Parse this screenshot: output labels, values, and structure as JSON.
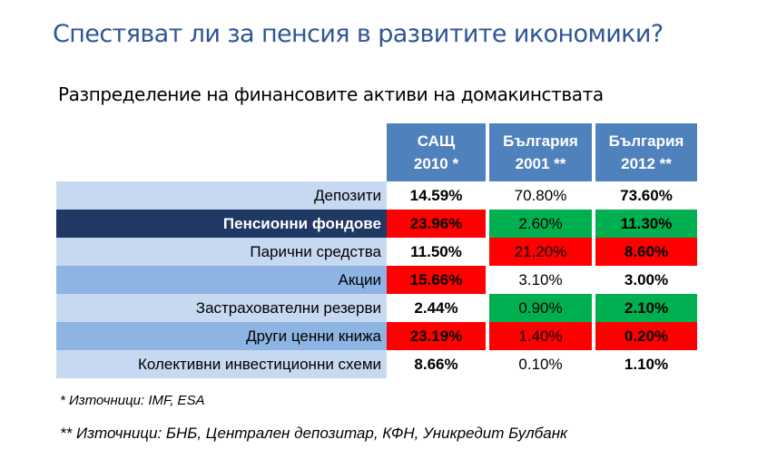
{
  "title": "Спестяват ли за пенсия в развитите икономики?",
  "subtitle": "Разпределение на финансовите активи на домакинствата",
  "colors": {
    "header": "#4f81bd",
    "row_light": "#c6d9f1",
    "row_mid": "#8db4e2",
    "row_dark": "#1f3864",
    "red": "#ff0000",
    "green": "#00b050"
  },
  "chart_data": {
    "type": "table",
    "columns": [
      {
        "line1": "САЩ",
        "line2": "2010 *"
      },
      {
        "line1": "България",
        "line2": "2001 **"
      },
      {
        "line1": "България",
        "line2": "2012 **"
      }
    ],
    "rows": [
      {
        "label": "Депозити",
        "style": "light",
        "values": [
          "14.59%",
          "70.80%",
          "73.60%"
        ],
        "highlight": [
          "none",
          "none",
          "none"
        ]
      },
      {
        "label": "Пенсионни фондове",
        "style": "dark",
        "values": [
          "23.96%",
          "2.60%",
          "11.30%"
        ],
        "highlight": [
          "red",
          "green",
          "green"
        ]
      },
      {
        "label": "Парични средства",
        "style": "light",
        "values": [
          "11.50%",
          "21.20%",
          "8.60%"
        ],
        "highlight": [
          "none",
          "red",
          "red"
        ]
      },
      {
        "label": "Акции",
        "style": "mid",
        "values": [
          "15.66%",
          "3.10%",
          "3.00%"
        ],
        "highlight": [
          "red",
          "none",
          "none"
        ]
      },
      {
        "label": "Застрахователни резерви",
        "style": "light",
        "values": [
          "2.44%",
          "0.90%",
          "2.10%"
        ],
        "highlight": [
          "none",
          "green",
          "green"
        ]
      },
      {
        "label": "Други ценни книжа",
        "style": "mid",
        "values": [
          "23.19%",
          "1.40%",
          "0.20%"
        ],
        "highlight": [
          "red",
          "red",
          "red"
        ]
      },
      {
        "label": "Колективни инвестиционни схеми",
        "style": "light",
        "values": [
          "8.66%",
          "0.10%",
          "1.10%"
        ],
        "highlight": [
          "none",
          "none",
          "none"
        ]
      }
    ]
  },
  "notes": {
    "note1": "* Източници: IMF, ESA",
    "note2": "** Източници: БНБ, Централен депозитар, КФН, Уникредит Булбанк"
  }
}
